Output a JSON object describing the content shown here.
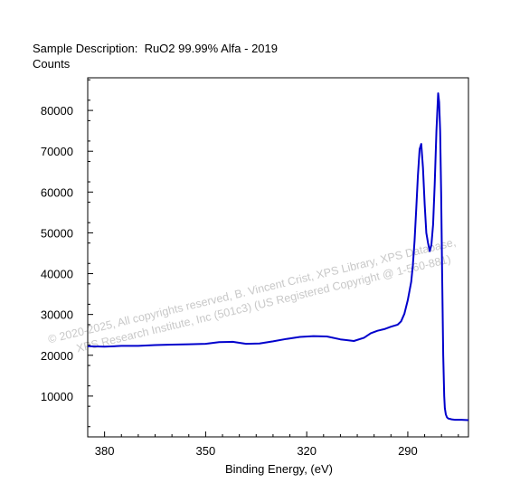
{
  "header": {
    "sample_label": "Sample Description:",
    "sample_value": "RuO2 99.99% Alfa - 2019"
  },
  "watermark": {
    "line1": "©  2020-2025,  All copyrights reserved,   B. Vincent Crist,  XPS Library,  XPS Database,",
    "line2": "XPS Research Institute, Inc (501c3)   (US Registered Copyright @ 1-560-881)"
  },
  "chart_data": {
    "type": "line",
    "title": "",
    "xlabel": "Binding Energy, (eV)",
    "ylabel": "Counts",
    "x_reversed": true,
    "xlim": [
      385,
      272
    ],
    "ylim": [
      0,
      88000
    ],
    "x_ticks": [
      380,
      350,
      320,
      290
    ],
    "y_ticks": [
      10000,
      20000,
      30000,
      40000,
      50000,
      60000,
      70000,
      80000
    ],
    "grid": false,
    "color": "#0000cc",
    "series": [
      {
        "x": [
          385,
          380,
          375,
          370,
          365,
          360,
          355,
          350,
          346,
          342,
          338,
          334,
          330,
          326,
          322,
          318,
          314,
          310,
          306,
          303,
          301,
          299,
          297,
          295,
          293,
          292,
          291,
          290,
          289,
          288.5,
          288,
          287.5,
          287,
          286.5,
          286,
          285.5,
          285,
          284.5,
          284,
          283.5,
          283,
          282.5,
          282,
          281.5,
          281,
          280.7,
          280.4,
          280.1,
          279.8,
          279.5,
          279.2,
          279,
          278.7,
          278.4,
          278,
          277.5,
          277,
          276,
          275,
          274,
          272
        ],
        "y": [
          22200,
          22100,
          22300,
          22300,
          22500,
          22600,
          22700,
          22800,
          23200,
          23300,
          22800,
          22900,
          23400,
          24000,
          24500,
          24700,
          24600,
          23900,
          23500,
          24300,
          25400,
          26000,
          26400,
          27000,
          27500,
          28300,
          30200,
          33500,
          38000,
          42000,
          48000,
          56000,
          64000,
          70500,
          71800,
          66000,
          57000,
          50000,
          47500,
          45500,
          47000,
          52000,
          62000,
          75000,
          84200,
          82000,
          75000,
          60000,
          40000,
          20000,
          10000,
          7000,
          5500,
          4800,
          4500,
          4400,
          4300,
          4200,
          4200,
          4200,
          4100
        ]
      }
    ]
  }
}
